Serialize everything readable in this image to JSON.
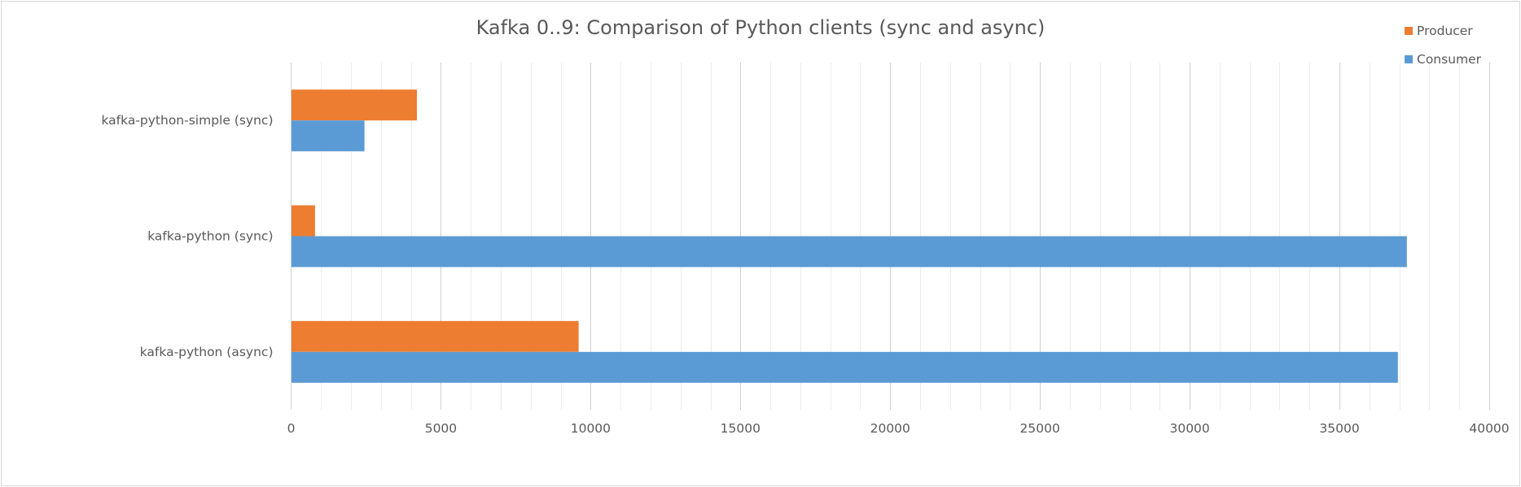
{
  "chart_data": {
    "type": "bar",
    "orientation": "horizontal",
    "title": "Kafka 0..9: Comparison of Python clients (sync and async)",
    "categories": [
      "kafka-python-simple (sync)",
      "kafka-python (sync)",
      "kafka-python (async)"
    ],
    "series": [
      {
        "name": "Producer",
        "color": "#ed7d31",
        "values": [
          4200,
          800,
          9600
        ]
      },
      {
        "name": "Consumer",
        "color": "#5b9bd5",
        "values": [
          2450,
          37250,
          36950
        ]
      }
    ],
    "xlim": [
      0,
      40000
    ],
    "x_ticks": [
      "0",
      "5000",
      "10000",
      "15000",
      "20000",
      "25000",
      "30000",
      "35000",
      "40000"
    ],
    "grid": true,
    "legend_position": "top-right"
  }
}
